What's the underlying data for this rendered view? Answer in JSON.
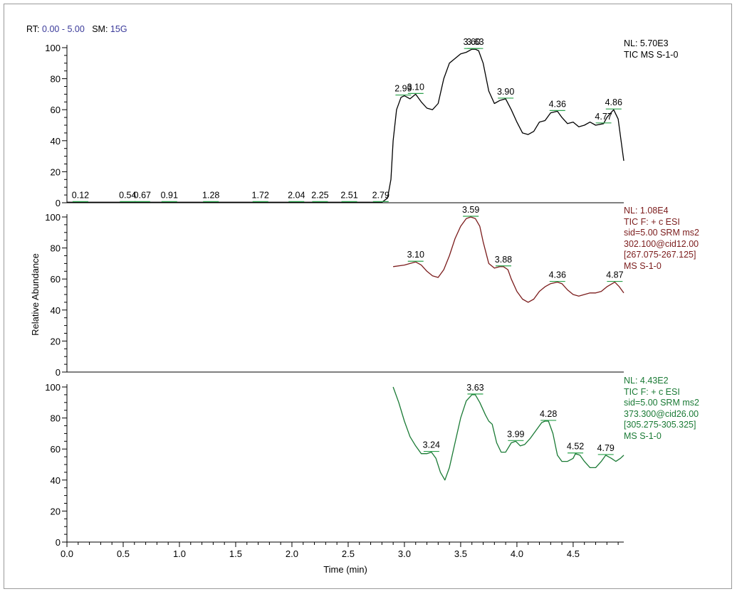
{
  "header": {
    "rt_label": "RT:",
    "rt_value": "0.00 - 5.00",
    "sm_label": "SM:",
    "sm_value": "15G"
  },
  "colors": {
    "trace_top": "#000000",
    "trace_mid": "#7b1c1c",
    "trace_bottom": "#1a7a35",
    "peak_marker": "#2aa04a"
  },
  "chart_data": {
    "type": "line",
    "xlabel": "Time (min)",
    "ylabel": "Relative Abundance",
    "xlim": [
      0,
      4.95
    ],
    "x_ticks": [
      "0.0",
      "0.5",
      "1.0",
      "1.5",
      "2.0",
      "2.5",
      "3.0",
      "3.5",
      "4.0",
      "4.5"
    ],
    "x_tick_values": [
      0,
      0.5,
      1.0,
      1.5,
      2.0,
      2.5,
      3.0,
      3.5,
      4.0,
      4.5
    ],
    "y_ticks": [
      "0",
      "20",
      "40",
      "60",
      "80",
      "100"
    ],
    "y_tick_values": [
      0,
      20,
      40,
      60,
      80,
      100
    ],
    "panels": [
      {
        "name": "TIC MS S-1-0",
        "info": [
          "NL: 5.70E3",
          "TIC  MS S-1-0"
        ],
        "series": {
          "x": [
            0,
            0.5,
            1.0,
            1.5,
            2.0,
            2.5,
            2.8,
            2.85,
            2.88,
            2.9,
            2.93,
            2.97,
            3.0,
            3.05,
            3.1,
            3.15,
            3.2,
            3.25,
            3.3,
            3.35,
            3.4,
            3.45,
            3.5,
            3.55,
            3.6,
            3.63,
            3.66,
            3.7,
            3.75,
            3.8,
            3.85,
            3.9,
            3.95,
            4.0,
            4.05,
            4.1,
            4.15,
            4.2,
            4.25,
            4.3,
            4.36,
            4.4,
            4.45,
            4.5,
            4.55,
            4.6,
            4.65,
            4.7,
            4.77,
            4.8,
            4.86,
            4.9,
            4.95
          ],
          "y": [
            0.3,
            0.3,
            0.3,
            0.3,
            0.3,
            0.3,
            0.3,
            3,
            15,
            40,
            60,
            68,
            69,
            67,
            70,
            65,
            61,
            60,
            64,
            80,
            90,
            93,
            96,
            97,
            99,
            99,
            98,
            90,
            72,
            64,
            66,
            67,
            60,
            52,
            45,
            44,
            46,
            52,
            53,
            58,
            59,
            55,
            51,
            52,
            49,
            50,
            52,
            50,
            51,
            55,
            60,
            54,
            27
          ]
        },
        "peaks": [
          {
            "label": "0.12",
            "x": 0.12,
            "y": 0.3
          },
          {
            "label": "0.54",
            "x": 0.54,
            "y": 0.3
          },
          {
            "label": "0.67",
            "x": 0.67,
            "y": 0.3
          },
          {
            "label": "0.91",
            "x": 0.91,
            "y": 0.3
          },
          {
            "label": "1.28",
            "x": 1.28,
            "y": 0.3
          },
          {
            "label": "1.72",
            "x": 1.72,
            "y": 0.3
          },
          {
            "label": "2.04",
            "x": 2.04,
            "y": 0.3
          },
          {
            "label": "2.25",
            "x": 2.25,
            "y": 0.3
          },
          {
            "label": "2.51",
            "x": 2.51,
            "y": 0.3
          },
          {
            "label": "2.79",
            "x": 2.79,
            "y": 0.3
          },
          {
            "label": "2.99",
            "x": 2.99,
            "y": 69
          },
          {
            "label": "3.10",
            "x": 3.1,
            "y": 70
          },
          {
            "label": "3.60",
            "x": 3.6,
            "y": 99
          },
          {
            "label": "3.63",
            "x": 3.63,
            "y": 99
          },
          {
            "label": "3.90",
            "x": 3.9,
            "y": 67
          },
          {
            "label": "4.36",
            "x": 4.36,
            "y": 59
          },
          {
            "label": "4.77",
            "x": 4.77,
            "y": 51
          },
          {
            "label": "4.86",
            "x": 4.86,
            "y": 60
          }
        ]
      },
      {
        "name": "TIC F: + c ESI sid=5.00 SRM ms2 302.100@cid12.00",
        "info": [
          "NL: 1.08E4",
          "TIC F: + c ESI",
          "sid=5.00  SRM ms2",
          "302.100@cid12.00",
          "[267.075-267.125]",
          "MS S-1-0"
        ],
        "series": {
          "x": [
            2.9,
            3.0,
            3.05,
            3.1,
            3.15,
            3.2,
            3.25,
            3.3,
            3.35,
            3.4,
            3.45,
            3.5,
            3.55,
            3.59,
            3.63,
            3.67,
            3.7,
            3.75,
            3.8,
            3.85,
            3.88,
            3.92,
            3.95,
            4.0,
            4.05,
            4.1,
            4.15,
            4.2,
            4.25,
            4.3,
            4.36,
            4.4,
            4.45,
            4.5,
            4.55,
            4.6,
            4.65,
            4.7,
            4.75,
            4.8,
            4.87,
            4.91,
            4.95
          ],
          "y": [
            68,
            69,
            70,
            71,
            69,
            65,
            62,
            61,
            66,
            75,
            86,
            94,
            99,
            100,
            99,
            94,
            84,
            70,
            67,
            68,
            68,
            66,
            60,
            52,
            47,
            45,
            47,
            52,
            55,
            57,
            58,
            57,
            53,
            50,
            49,
            50,
            51,
            51,
            52,
            55,
            58,
            55,
            51
          ]
        },
        "peaks": [
          {
            "label": "3.10",
            "x": 3.1,
            "y": 71
          },
          {
            "label": "3.59",
            "x": 3.59,
            "y": 100
          },
          {
            "label": "3.88",
            "x": 3.88,
            "y": 68
          },
          {
            "label": "4.36",
            "x": 4.36,
            "y": 58
          },
          {
            "label": "4.87",
            "x": 4.87,
            "y": 58
          }
        ]
      },
      {
        "name": "TIC F: + c ESI sid=5.00 SRM ms2 373.300@cid26.00",
        "info": [
          "NL: 4.43E2",
          "TIC F: + c ESI",
          "sid=5.00  SRM ms2",
          "373.300@cid26.00",
          "[305.275-305.325]",
          "MS S-1-0"
        ],
        "series": {
          "x": [
            2.9,
            2.95,
            3.0,
            3.05,
            3.1,
            3.15,
            3.2,
            3.24,
            3.28,
            3.32,
            3.36,
            3.4,
            3.45,
            3.5,
            3.55,
            3.6,
            3.63,
            3.67,
            3.72,
            3.75,
            3.78,
            3.82,
            3.86,
            3.9,
            3.95,
            3.99,
            4.03,
            4.07,
            4.12,
            4.17,
            4.22,
            4.25,
            4.28,
            4.32,
            4.36,
            4.4,
            4.45,
            4.5,
            4.52,
            4.56,
            4.6,
            4.65,
            4.7,
            4.75,
            4.79,
            4.84,
            4.88,
            4.92,
            4.95
          ],
          "y": [
            100,
            90,
            78,
            68,
            62,
            57,
            57,
            58,
            54,
            45,
            40,
            48,
            64,
            80,
            91,
            95,
            95,
            90,
            82,
            78,
            76,
            64,
            58,
            58,
            64,
            65,
            62,
            63,
            67,
            72,
            77,
            78,
            78,
            70,
            56,
            52,
            52,
            54,
            57,
            56,
            52,
            48,
            48,
            52,
            56,
            54,
            52,
            54,
            56
          ]
        },
        "peaks": [
          {
            "label": "3.24",
            "x": 3.24,
            "y": 58
          },
          {
            "label": "3.63",
            "x": 3.63,
            "y": 95
          },
          {
            "label": "3.99",
            "x": 3.99,
            "y": 65
          },
          {
            "label": "4.28",
            "x": 4.28,
            "y": 78
          },
          {
            "label": "4.52",
            "x": 4.52,
            "y": 57
          },
          {
            "label": "4.79",
            "x": 4.79,
            "y": 56
          }
        ]
      }
    ]
  }
}
